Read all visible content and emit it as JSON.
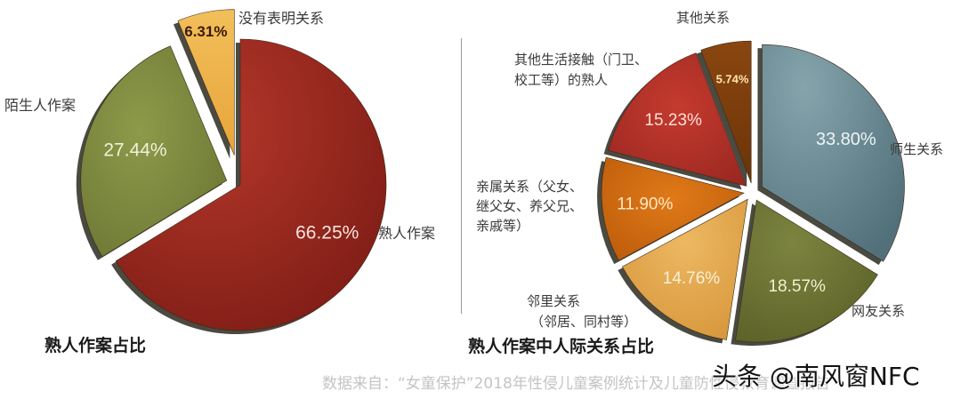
{
  "chart_data": [
    {
      "type": "pie",
      "title": "熟人作案占比",
      "categories": [
        "熟人作案",
        "陌生人作案",
        "没有表明关系"
      ],
      "values": [
        66.25,
        27.44,
        6.31
      ],
      "value_labels": [
        "66.25%",
        "27.44%",
        "6.31%"
      ],
      "colors": [
        "#9c2a1f",
        "#7f8a3e",
        "#f0b548"
      ],
      "exploded": [
        "陌生人作案",
        "没有表明关系"
      ]
    },
    {
      "type": "pie",
      "title": "熟人作案中人际关系占比",
      "categories": [
        "师生关系",
        "网友关系",
        "邻里关系（邻居、同村等）",
        "亲属关系（父女、继父女、养父兄、亲戚等）",
        "其他生活接触（门卫、校工等）的熟人",
        "其他关系"
      ],
      "values": [
        33.8,
        18.57,
        14.76,
        11.9,
        15.23,
        5.74
      ],
      "value_labels": [
        "33.80%",
        "18.57%",
        "14.76%",
        "11.90%",
        "15.23%",
        "5.74%"
      ],
      "colors": [
        "#6b8a93",
        "#6f7434",
        "#e7ac4f",
        "#d86d0e",
        "#b8322a",
        "#7e3d0a"
      ],
      "exploded": "all"
    }
  ],
  "left": {
    "title": "熟人作案占比",
    "labels": {
      "acquaintance": "熟人作案",
      "stranger": "陌生人作案",
      "unstated": "没有表明关系"
    },
    "values": {
      "acquaintance": "66.25%",
      "stranger": "27.44%",
      "unstated": "6.31%"
    }
  },
  "right": {
    "title": "熟人作案中人际关系占比",
    "labels": {
      "teacher": "师生关系",
      "online": "网友关系",
      "neighbor_1": "邻里关系",
      "neighbor_2": "（邻居、同村等）",
      "relative_1": "亲属关系（父女、",
      "relative_2": "继父女、养父兄、",
      "relative_3": "亲戚等）",
      "daily_1": "其他生活接触（门卫、",
      "daily_2": "校工等）的熟人",
      "other": "其他关系"
    },
    "values": {
      "teacher": "33.80%",
      "online": "18.57%",
      "neighbor": "14.76%",
      "relative": "11.90%",
      "daily": "15.23%",
      "other": "5.74%"
    }
  },
  "footer": {
    "source": "数据来自：“女童保护”2018年性侵儿童案例统计及儿童防性侵教育调查报告",
    "watermark": "头条 @南风窗NFC"
  }
}
